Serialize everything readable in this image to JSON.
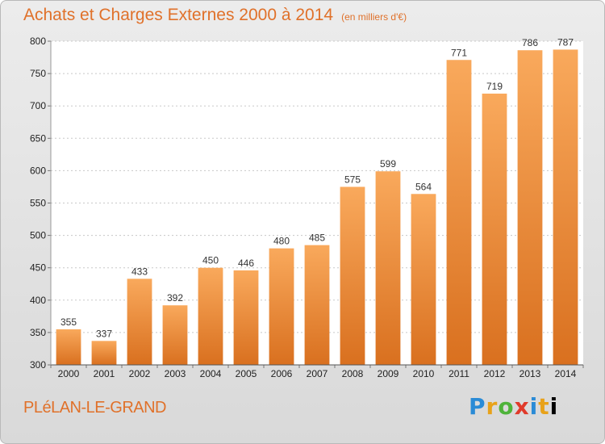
{
  "header": {
    "title": "Achats et Charges Externes 2000 à 2014",
    "unit": "(en milliers d'€)"
  },
  "footer": {
    "commune": "PLéLAN-LE-GRAND",
    "logo": "Proxiti"
  },
  "colors": {
    "bar_top": "#f9a95c",
    "bar_bottom": "#d9701f",
    "title": "#e0712a"
  },
  "chart_data": {
    "type": "bar",
    "categories": [
      "2000",
      "2001",
      "2002",
      "2003",
      "2004",
      "2005",
      "2006",
      "2007",
      "2008",
      "2009",
      "2010",
      "2011",
      "2012",
      "2013",
      "2014"
    ],
    "values": [
      355,
      337,
      433,
      392,
      450,
      446,
      480,
      485,
      575,
      599,
      564,
      771,
      719,
      786,
      787
    ],
    "ylim": [
      300,
      800
    ],
    "yticks": [
      300,
      350,
      400,
      450,
      500,
      550,
      600,
      650,
      700,
      750,
      800
    ],
    "grid": true,
    "legend": "none",
    "title": "Achats et Charges Externes 2000 à 2014",
    "xlabel": "",
    "ylabel": ""
  }
}
